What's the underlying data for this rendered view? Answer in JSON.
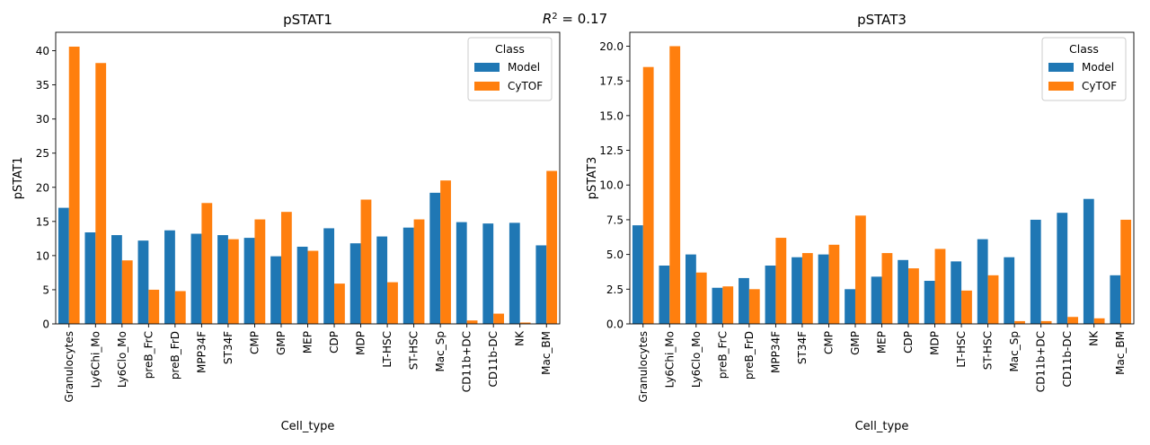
{
  "figure": {
    "suptitle": "R² = 0.17",
    "suptitle_base": "R",
    "suptitle_sup": "2",
    "suptitle_rest": " = 0.17"
  },
  "colors": {
    "Model": "#1f77b4",
    "CyTOF": "#ff7f0e"
  },
  "chart_data": [
    {
      "type": "bar",
      "title": "pSTAT1",
      "xlabel": "Cell_type",
      "ylabel": "pSTAT1",
      "ylim": [
        0,
        42.7
      ],
      "yticks": [
        0,
        5,
        10,
        15,
        20,
        25,
        30,
        35,
        40
      ],
      "ytick_labels": [
        "0",
        "5",
        "10",
        "15",
        "20",
        "25",
        "30",
        "35",
        "40"
      ],
      "legend": {
        "title": "Class",
        "entries": [
          "Model",
          "CyTOF"
        ],
        "placement": "top-right"
      },
      "categories": [
        "Granulocytes",
        "Ly6Chi_Mo",
        "Ly6Clo_Mo",
        "preB_FrC",
        "preB_FrD",
        "MPP34F",
        "ST34F",
        "CMP",
        "GMP",
        "MEP",
        "CDP",
        "MDP",
        "LT-HSC",
        "ST-HSC",
        "Mac_Sp",
        "CD11b+DC",
        "CD11b-DC",
        "NK",
        "Mac_BM"
      ],
      "series": [
        {
          "name": "Model",
          "values": [
            17.0,
            13.4,
            13.0,
            12.2,
            13.7,
            13.2,
            13.0,
            12.6,
            9.9,
            11.3,
            14.0,
            11.8,
            12.8,
            14.1,
            19.2,
            14.9,
            14.7,
            14.8,
            11.5
          ]
        },
        {
          "name": "CyTOF",
          "values": [
            40.6,
            38.2,
            9.3,
            5.0,
            4.8,
            17.7,
            12.4,
            15.3,
            16.4,
            10.7,
            5.9,
            18.2,
            6.1,
            15.3,
            21.0,
            0.5,
            1.5,
            0.2,
            22.4
          ]
        }
      ]
    },
    {
      "type": "bar",
      "title": "pSTAT3",
      "xlabel": "Cell_type",
      "ylabel": "pSTAT3",
      "ylim": [
        0,
        21.0
      ],
      "yticks": [
        0,
        2.5,
        5,
        7.5,
        10,
        12.5,
        15,
        17.5,
        20
      ],
      "ytick_labels": [
        "0.0",
        "2.5",
        "5.0",
        "7.5",
        "10.0",
        "12.5",
        "15.0",
        "17.5",
        "20.0"
      ],
      "legend": {
        "title": "Class",
        "entries": [
          "Model",
          "CyTOF"
        ],
        "placement": "top-right"
      },
      "categories": [
        "Granulocytes",
        "Ly6Chi_Mo",
        "Ly6Clo_Mo",
        "preB_FrC",
        "preB_FrD",
        "MPP34F",
        "ST34F",
        "CMP",
        "GMP",
        "MEP",
        "CDP",
        "MDP",
        "LT-HSC",
        "ST-HSC",
        "Mac_Sp",
        "CD11b+DC",
        "CD11b-DC",
        "NK",
        "Mac_BM"
      ],
      "series": [
        {
          "name": "Model",
          "values": [
            7.1,
            4.2,
            5.0,
            2.6,
            3.3,
            4.2,
            4.8,
            5.0,
            2.5,
            3.4,
            4.6,
            3.1,
            4.5,
            6.1,
            4.8,
            7.5,
            8.0,
            9.0,
            3.5
          ]
        },
        {
          "name": "CyTOF",
          "values": [
            18.5,
            20.0,
            3.7,
            2.7,
            2.5,
            6.2,
            5.1,
            5.7,
            7.8,
            5.1,
            4.0,
            5.4,
            2.4,
            3.5,
            0.2,
            0.2,
            0.5,
            0.4,
            7.5
          ]
        }
      ]
    }
  ]
}
